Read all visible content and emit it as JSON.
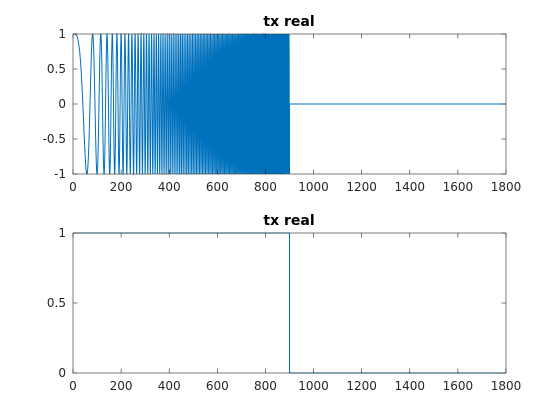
{
  "figure": {
    "background": "#ffffff",
    "axes_color": "#262626",
    "line_color": "#0072bd"
  },
  "chart_data": [
    {
      "type": "line",
      "title": "tx real",
      "xlabel": "",
      "ylabel": "",
      "xlim": [
        0,
        1800
      ],
      "ylim": [
        -1,
        1
      ],
      "xticks": [
        0,
        200,
        400,
        600,
        800,
        1000,
        1200,
        1400,
        1600,
        1800
      ],
      "yticks": [
        -1,
        -0.5,
        0,
        0.5,
        1
      ],
      "xtick_labels": [
        "0",
        "200",
        "400",
        "600",
        "800",
        "1000",
        "1200",
        "1400",
        "1600",
        "1800"
      ],
      "ytick_labels": [
        "-1",
        "-0.5",
        "0",
        "0.5",
        "1"
      ],
      "grid": false,
      "series": [
        {
          "signal": "chirp",
          "function": "cos",
          "x_start": 0,
          "x_end": 900,
          "phase_coefficient": 0.0003,
          "after_end_value": 0,
          "x_max": 1800
        }
      ]
    },
    {
      "type": "line",
      "title": "tx real",
      "xlabel": "",
      "ylabel": "",
      "xlim": [
        0,
        1800
      ],
      "ylim": [
        0,
        1
      ],
      "xticks": [
        0,
        200,
        400,
        600,
        800,
        1000,
        1200,
        1400,
        1600,
        1800
      ],
      "yticks": [
        0,
        0.5,
        1
      ],
      "xtick_labels": [
        "0",
        "200",
        "400",
        "600",
        "800",
        "1000",
        "1200",
        "1400",
        "1600",
        "1800"
      ],
      "ytick_labels": [
        "0",
        "0.5",
        "1"
      ],
      "grid": false,
      "series": [
        {
          "signal": "step",
          "x": [
            0,
            900,
            900,
            1800
          ],
          "y": [
            1,
            1,
            0,
            0
          ]
        }
      ]
    }
  ]
}
